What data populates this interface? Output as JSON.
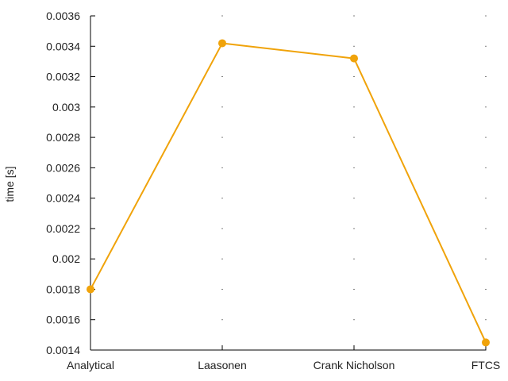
{
  "colors": {
    "series": "#f0a30a",
    "axis": "#000000",
    "text": "#222222"
  },
  "chart_data": {
    "type": "line",
    "categories": [
      "Analytical",
      "Laasonen",
      "Crank Nicholson",
      "FTCS"
    ],
    "series": [
      {
        "values": [
          0.0018,
          0.00342,
          0.00332,
          0.00145
        ]
      }
    ],
    "ylabel": "time [s]",
    "ylim": [
      0.0014,
      0.0036
    ],
    "yticks": [
      "0.0014",
      "0.0016",
      "0.0018",
      "0.002",
      "0.0022",
      "0.0024",
      "0.0026",
      "0.0028",
      "0.003",
      "0.0032",
      "0.0034",
      "0.0036"
    ],
    "grid": false,
    "legend": "none"
  }
}
